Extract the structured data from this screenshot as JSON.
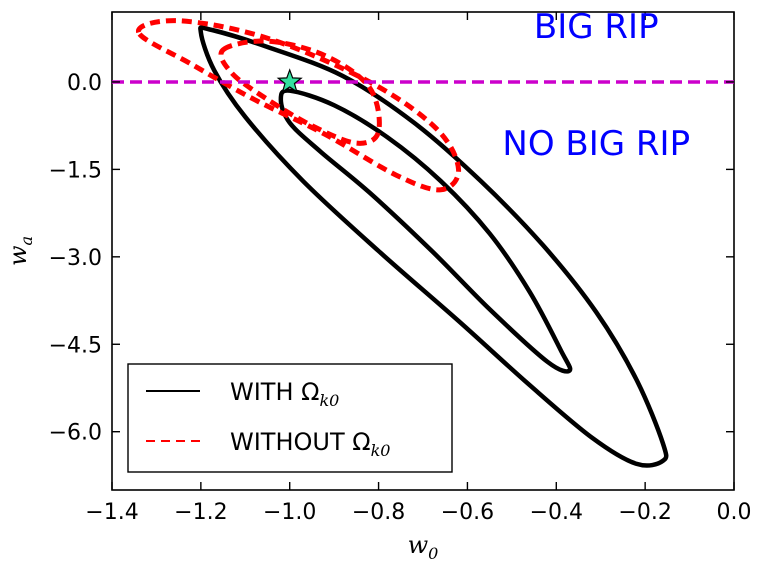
{
  "chart_data": {
    "type": "contour",
    "xlabel": "w0",
    "xlabel_base": "w",
    "xlabel_sub": "0",
    "ylabel": "wa",
    "ylabel_base": "w",
    "ylabel_sub": "a",
    "xlim": [
      -1.4,
      0.0
    ],
    "ylim": [
      -7.0,
      1.2
    ],
    "xticks": [
      -1.4,
      -1.2,
      -1.0,
      -0.8,
      -0.6,
      -0.4,
      -0.2,
      0.0
    ],
    "xtick_labels": [
      "−1.4",
      "−1.2",
      "−1.0",
      "−0.8",
      "−0.6",
      "−0.4",
      "−0.2",
      "0.0"
    ],
    "yticks": [
      0.0,
      -1.5,
      -3.0,
      -4.5,
      -6.0
    ],
    "ytick_labels": [
      "0.0",
      "−1.5",
      "−3.0",
      "−4.5",
      "−6.0"
    ],
    "reference_line": {
      "y": 0.0,
      "color": "#cc00cc",
      "style": "dashed"
    },
    "marker": {
      "x": -1.0,
      "y": 0.0,
      "shape": "star",
      "color": "#33e0a0"
    },
    "regions": [
      {
        "label": "BIG RIP",
        "x": -0.31,
        "y": 0.75,
        "color": "#0000ff"
      },
      {
        "label": "NO BIG RIP",
        "x": -0.31,
        "y": -1.25,
        "color": "#0000ff"
      }
    ],
    "series": [
      {
        "name": "WITH Ωk0",
        "legend_label": "WITH Ω",
        "legend_sub": "k0",
        "color": "#000000",
        "style": "solid",
        "contours": [
          [
            [
              -1.02,
              -0.3
            ],
            [
              -1.0,
              -0.15
            ],
            [
              -0.9,
              -0.4
            ],
            [
              -0.78,
              -0.95
            ],
            [
              -0.66,
              -1.7
            ],
            [
              -0.55,
              -2.6
            ],
            [
              -0.46,
              -3.6
            ],
            [
              -0.39,
              -4.6
            ],
            [
              -0.37,
              -4.95
            ],
            [
              -0.42,
              -4.8
            ],
            [
              -0.55,
              -3.9
            ],
            [
              -0.68,
              -2.9
            ],
            [
              -0.82,
              -1.9
            ],
            [
              -0.93,
              -1.2
            ],
            [
              -1.0,
              -0.7
            ],
            [
              -1.02,
              -0.3
            ]
          ],
          [
            [
              -1.2,
              0.85
            ],
            [
              -1.18,
              0.9
            ],
            [
              -1.05,
              0.6
            ],
            [
              -0.88,
              0.1
            ],
            [
              -0.72,
              -0.7
            ],
            [
              -0.57,
              -1.7
            ],
            [
              -0.43,
              -2.8
            ],
            [
              -0.31,
              -3.95
            ],
            [
              -0.22,
              -5.1
            ],
            [
              -0.16,
              -6.2
            ],
            [
              -0.16,
              -6.5
            ],
            [
              -0.22,
              -6.55
            ],
            [
              -0.32,
              -6.1
            ],
            [
              -0.46,
              -5.2
            ],
            [
              -0.62,
              -4.1
            ],
            [
              -0.8,
              -2.9
            ],
            [
              -0.97,
              -1.7
            ],
            [
              -1.1,
              -0.6
            ],
            [
              -1.17,
              0.2
            ],
            [
              -1.2,
              0.85
            ]
          ]
        ]
      },
      {
        "name": "WITHOUT Ωk0",
        "legend_label": "WITHOUT Ω",
        "legend_sub": "k0",
        "color": "#ff0000",
        "style": "dashed",
        "contours": [
          [
            [
              -1.15,
              0.55
            ],
            [
              -1.05,
              0.7
            ],
            [
              -0.92,
              0.45
            ],
            [
              -0.82,
              -0.1
            ],
            [
              -0.8,
              -0.85
            ],
            [
              -0.85,
              -1.05
            ],
            [
              -0.95,
              -0.75
            ],
            [
              -1.05,
              -0.3
            ],
            [
              -1.13,
              0.15
            ],
            [
              -1.15,
              0.55
            ]
          ],
          [
            [
              -1.34,
              0.85
            ],
            [
              -1.25,
              1.05
            ],
            [
              -1.05,
              0.75
            ],
            [
              -0.82,
              0.0
            ],
            [
              -0.67,
              -0.8
            ],
            [
              -0.62,
              -1.5
            ],
            [
              -0.66,
              -1.85
            ],
            [
              -0.76,
              -1.6
            ],
            [
              -0.92,
              -0.9
            ],
            [
              -1.08,
              -0.3
            ],
            [
              -1.22,
              0.3
            ],
            [
              -1.34,
              0.85
            ]
          ]
        ]
      }
    ]
  }
}
